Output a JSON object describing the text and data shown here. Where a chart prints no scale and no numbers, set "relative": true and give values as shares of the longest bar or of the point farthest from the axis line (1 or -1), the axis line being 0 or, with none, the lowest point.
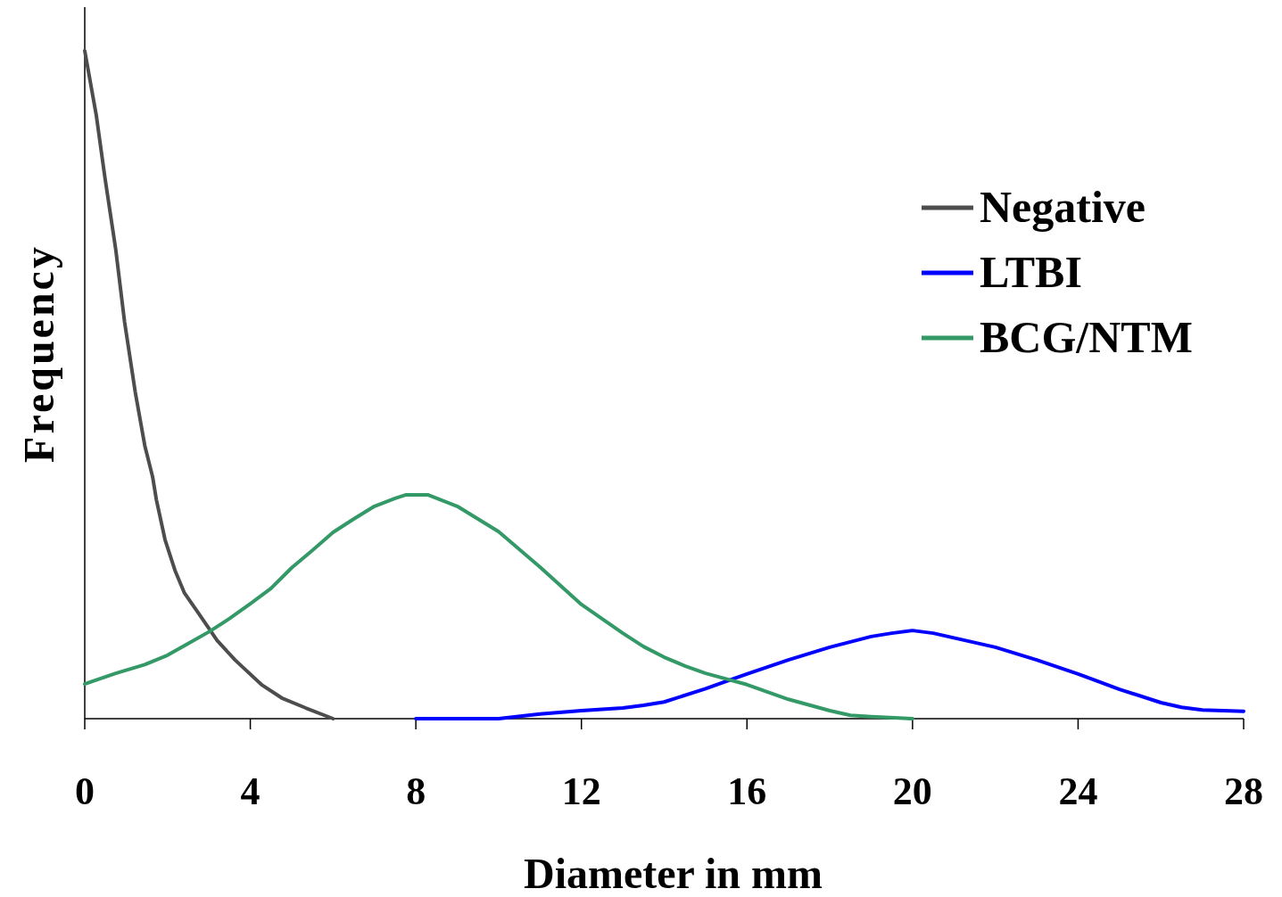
{
  "chart_data": {
    "type": "line",
    "relative": true,
    "xlabel": "Diameter in mm",
    "ylabel": "Frequency",
    "xlim": [
      0,
      28
    ],
    "xticks": [
      0,
      4,
      8,
      12,
      16,
      20,
      24,
      28
    ],
    "legend": "top right",
    "grid": false,
    "marker": "none",
    "line_style": "solid",
    "series": [
      {
        "name": "Negative",
        "color": "#4d4d4d",
        "x": [
          0,
          0.28,
          0.49,
          0.75,
          0.96,
          1.22,
          1.45,
          1.64,
          1.73,
          1.94,
          2.18,
          2.41,
          2.78,
          3.2,
          3.63,
          4.27,
          4.76,
          5.34,
          6
        ],
        "values": [
          1,
          0.903,
          0.809,
          0.702,
          0.595,
          0.489,
          0.409,
          0.362,
          0.328,
          0.268,
          0.222,
          0.188,
          0.155,
          0.117,
          0.088,
          0.051,
          0.031,
          0.016,
          0
        ]
      },
      {
        "name": "LTBI",
        "color": "#0000ff",
        "x": [
          8,
          10,
          11,
          12,
          13,
          13.5,
          14,
          15,
          16,
          17,
          18,
          19,
          19.5,
          20,
          20.5,
          21,
          22,
          23,
          24,
          25,
          26,
          26.5,
          27,
          28
        ],
        "values": [
          0,
          0,
          0.007,
          0.012,
          0.016,
          0.02,
          0.025,
          0.045,
          0.067,
          0.088,
          0.107,
          0.123,
          0.128,
          0.132,
          0.128,
          0.121,
          0.107,
          0.088,
          0.067,
          0.044,
          0.024,
          0.017,
          0.013,
          0.011
        ]
      },
      {
        "name": "BCG/NTM",
        "color": "#339966",
        "x": [
          0,
          0.75,
          1.45,
          2,
          2.46,
          3,
          3.5,
          4,
          4.5,
          5,
          5.5,
          6,
          6.5,
          7,
          7.5,
          7.75,
          8.3,
          9,
          10,
          11,
          12,
          13,
          13.5,
          14,
          14.5,
          15,
          16,
          17,
          18,
          18.5,
          19,
          20
        ],
        "values": [
          0.052,
          0.068,
          0.081,
          0.095,
          0.111,
          0.13,
          0.15,
          0.172,
          0.195,
          0.226,
          0.252,
          0.279,
          0.299,
          0.318,
          0.33,
          0.335,
          0.335,
          0.318,
          0.28,
          0.227,
          0.171,
          0.128,
          0.108,
          0.092,
          0.079,
          0.068,
          0.051,
          0.029,
          0.012,
          0.005,
          0.003,
          0
        ]
      }
    ]
  }
}
